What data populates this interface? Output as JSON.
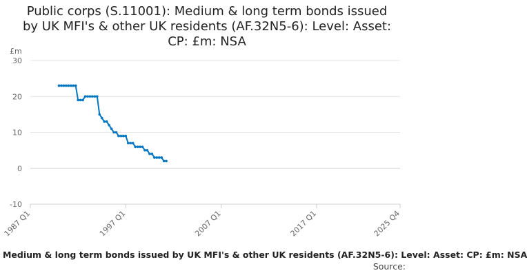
{
  "chart_data": {
    "type": "line",
    "title": "Public corps (S.11001): Medium & long term bonds issued by UK MFI's & other UK residents (AF.32N5-6): Level: Asset: CP: £m: NSA",
    "title_lines": [
      "Public corps (S.11001): Medium & long term bonds issued",
      "by UK MFI's & other UK residents (AF.32N5-6): Level: Asset:",
      "CP: £m: NSA"
    ],
    "ylabel": "£m",
    "xlabel": "",
    "ylim": [
      -10,
      30
    ],
    "yticks": [
      -10,
      0,
      10,
      20,
      30
    ],
    "xlim": [
      "1987 Q1",
      "2025 Q4"
    ],
    "xticks": [
      "1987 Q1",
      "1997 Q1",
      "2007 Q1",
      "2017 Q1",
      "2025 Q4"
    ],
    "grid": true,
    "legend_position": "bottom",
    "series": [
      {
        "name": "Public corps (S.11001): Medium & long term bonds issued by UK MFI's & other UK residents (AF.32N5-6): Level: Asset: CP: £m: NSA",
        "color": "#0076c0",
        "start": "1990 Q1",
        "values": [
          23,
          23,
          23,
          23,
          23,
          23,
          23,
          23,
          19,
          19,
          19,
          20,
          20,
          20,
          20,
          20,
          20,
          15,
          14,
          13,
          13,
          12,
          11,
          10,
          10,
          9,
          9,
          9,
          9,
          7,
          7,
          7,
          6,
          6,
          6,
          6,
          5,
          5,
          4,
          4,
          3,
          3,
          3,
          3,
          2,
          2
        ]
      }
    ]
  },
  "source_label": "Source:"
}
